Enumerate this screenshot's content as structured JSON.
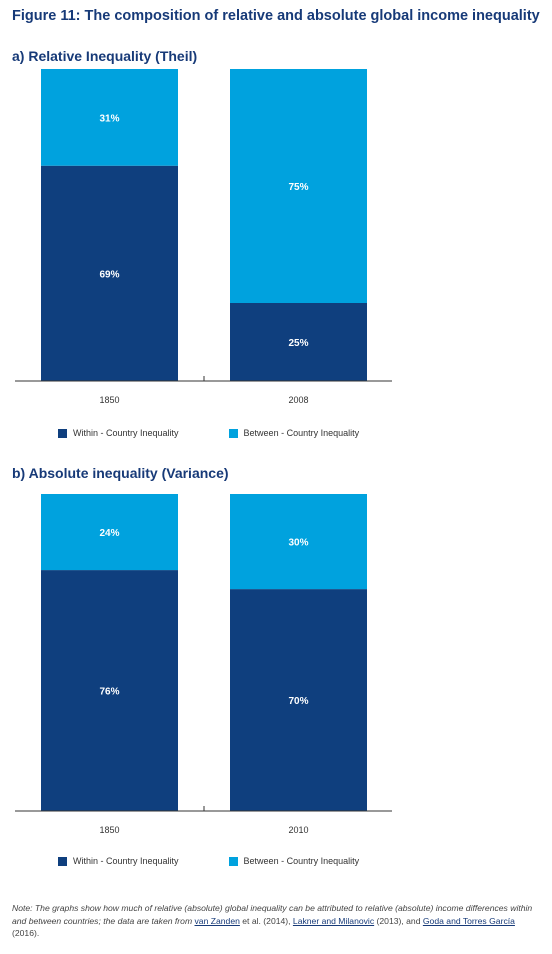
{
  "figure_title": "Figure 11: The composition of relative and absolute global income inequality",
  "colors": {
    "within": "#0f3f7e",
    "between": "#00a2de",
    "label": "#ffffff",
    "axis": "#333333"
  },
  "legend": {
    "within_label": "Within - Country Inequality",
    "between_label": "Between - Country Inequality"
  },
  "chart_data": [
    {
      "type": "bar",
      "stacked": true,
      "title": "a) Relative Inequality (Theil)",
      "categories": [
        "1850",
        "2008"
      ],
      "series": [
        {
          "name": "Within - Country Inequality",
          "values": [
            69,
            25
          ],
          "labels": [
            "69%",
            "25%"
          ]
        },
        {
          "name": "Between - Country Inequality",
          "values": [
            31,
            75
          ],
          "labels": [
            "31%",
            "75%"
          ]
        }
      ],
      "ylim": [
        0,
        100
      ],
      "grid": false,
      "legend_position": "bottom-left"
    },
    {
      "type": "bar",
      "stacked": true,
      "title": "b) Absolute inequality (Variance)",
      "categories": [
        "1850",
        "2010"
      ],
      "series": [
        {
          "name": "Within - Country Inequality",
          "values": [
            76,
            70
          ],
          "labels": [
            "76%",
            "70%"
          ]
        },
        {
          "name": "Between - Country Inequality",
          "values": [
            24,
            30
          ],
          "labels": [
            "24%",
            "30%"
          ]
        }
      ],
      "ylim": [
        0,
        100
      ],
      "grid": false,
      "legend_position": "bottom-left"
    }
  ],
  "note": {
    "prefix": "Note: The graphs show how much of relative (absolute) global inequality can be attributed to relative (absolute) income differences within and between countries; the data are taken from ",
    "link1": "van Zanden",
    "mid1": " et al. (2014), ",
    "link2": "Lakner and Milanovic",
    "mid2": " (2013), and ",
    "link3": "Goda and Torres García",
    "suffix": " (2016)."
  }
}
